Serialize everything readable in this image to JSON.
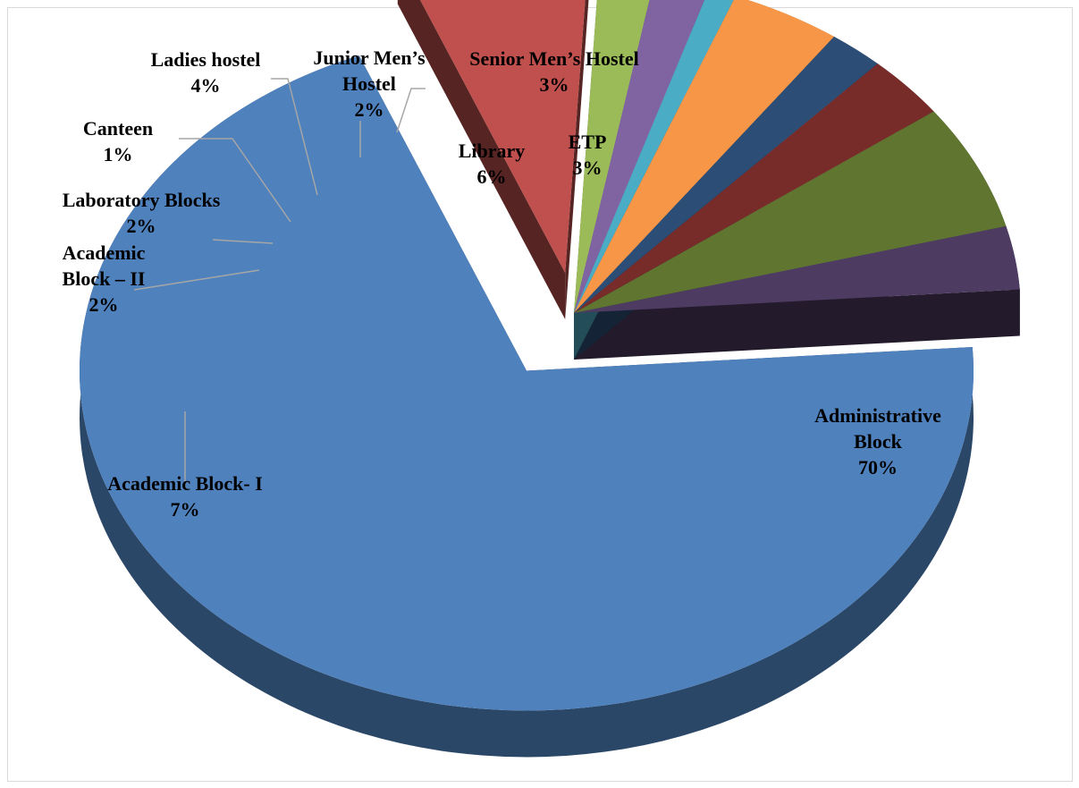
{
  "chart_data": {
    "type": "pie",
    "style": "3d-exploded",
    "title": "",
    "slices": [
      {
        "label": "Administrative Block",
        "lines": [
          "Administrative",
          "Block"
        ],
        "pct_text": "70%",
        "value": 70,
        "color": "#4f81bd"
      },
      {
        "label": "Academic Block- I",
        "lines": [
          "Academic Block- I"
        ],
        "pct_text": "7%",
        "value": 7,
        "color": "#c0504d"
      },
      {
        "label": "Academic Block – II",
        "lines": [
          "Academic",
          "Block – II"
        ],
        "pct_text": "2%",
        "value": 2,
        "color": "#9bbb59"
      },
      {
        "label": "Laboratory Blocks",
        "lines": [
          "Laboratory Blocks"
        ],
        "pct_text": "2%",
        "value": 2,
        "color": "#8064a2"
      },
      {
        "label": "Canteen",
        "lines": [
          "Canteen"
        ],
        "pct_text": "1%",
        "value": 1,
        "color": "#4bacc6"
      },
      {
        "label": "Ladies hostel",
        "lines": [
          "Ladies hostel"
        ],
        "pct_text": "4%",
        "value": 4,
        "color": "#f79646"
      },
      {
        "label": "Junior Men’s Hostel",
        "lines": [
          "Junior Men’s",
          "Hostel"
        ],
        "pct_text": "2%",
        "value": 2,
        "color": "#2c4d75"
      },
      {
        "label": "Senior Men’s Hostel",
        "lines": [
          "Senior Men’s Hostel"
        ],
        "pct_text": "3%",
        "value": 3,
        "color": "#772c2a"
      },
      {
        "label": "Library",
        "lines": [
          "Library"
        ],
        "pct_text": "6%",
        "value": 6,
        "color": "#5f7530"
      },
      {
        "label": "ETP",
        "lines": [
          "ETP"
        ],
        "pct_text": "3%",
        "value": 3,
        "color": "#4d3b62"
      }
    ]
  }
}
